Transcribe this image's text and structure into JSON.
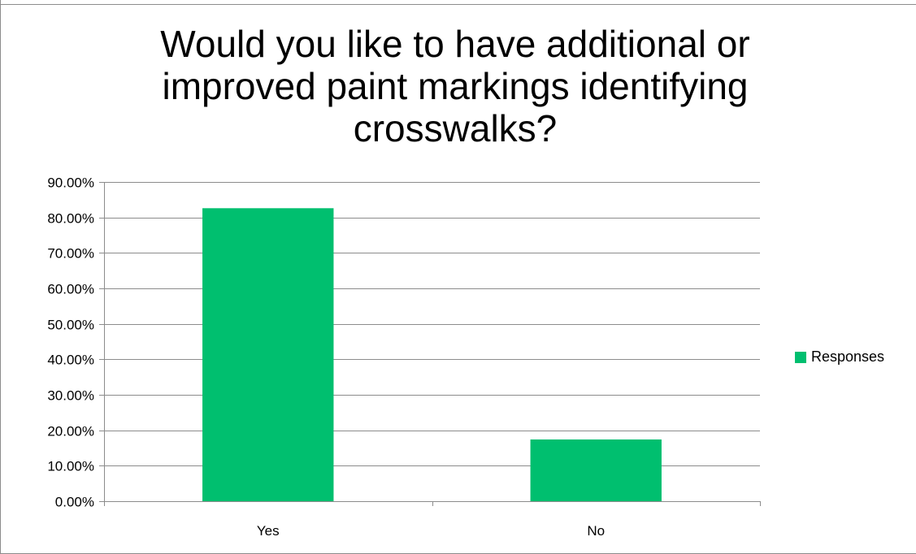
{
  "chart_data": {
    "type": "bar",
    "title": "Would you like to have additional or improved paint markings identifying crosswalks?",
    "categories": [
      "Yes",
      "No"
    ],
    "series": [
      {
        "name": "Responses",
        "values": [
          0.826,
          0.174
        ]
      }
    ],
    "ylim": [
      0,
      0.9
    ],
    "yticks": [
      "0.00%",
      "10.00%",
      "20.00%",
      "30.00%",
      "40.00%",
      "50.00%",
      "60.00%",
      "70.00%",
      "80.00%",
      "90.00%"
    ],
    "xlabel": "",
    "ylabel": "",
    "grid": true,
    "legend_position": "right",
    "bar_color": "#00bf6f"
  }
}
